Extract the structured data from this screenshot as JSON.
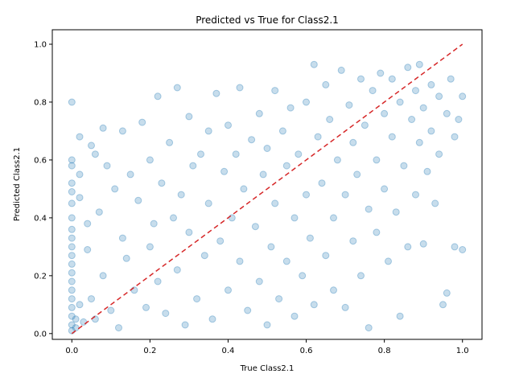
{
  "chart_data": {
    "type": "scatter",
    "title": "Predicted vs True for Class2.1",
    "xlabel": "True Class2.1",
    "ylabel": "Predicted Class2.1",
    "xlim": [
      -0.05,
      1.05
    ],
    "ylim": [
      -0.02,
      1.05
    ],
    "xticks": [
      0.0,
      0.2,
      0.4,
      0.6,
      0.8,
      1.0
    ],
    "xtick_labels": [
      "0.0",
      "0.2",
      "0.4",
      "0.6",
      "0.8",
      "1.0"
    ],
    "yticks": [
      0.0,
      0.2,
      0.4,
      0.6,
      0.8,
      1.0
    ],
    "ytick_labels": [
      "0.0",
      "0.2",
      "0.4",
      "0.6",
      "0.8",
      "1.0"
    ],
    "grid": false,
    "point_color": "#1f77b4",
    "point_alpha": 0.25,
    "reference_line": {
      "from": [
        0,
        0
      ],
      "to": [
        1,
        1
      ],
      "color": "#d62728",
      "style": "dashed"
    },
    "points": [
      [
        0.0,
        0.8
      ],
      [
        0.0,
        0.6
      ],
      [
        0.0,
        0.58
      ],
      [
        0.0,
        0.52
      ],
      [
        0.0,
        0.49
      ],
      [
        0.0,
        0.45
      ],
      [
        0.0,
        0.4
      ],
      [
        0.0,
        0.36
      ],
      [
        0.0,
        0.33
      ],
      [
        0.0,
        0.3
      ],
      [
        0.0,
        0.27
      ],
      [
        0.0,
        0.24
      ],
      [
        0.0,
        0.21
      ],
      [
        0.0,
        0.18
      ],
      [
        0.0,
        0.15
      ],
      [
        0.0,
        0.12
      ],
      [
        0.0,
        0.09
      ],
      [
        0.0,
        0.06
      ],
      [
        0.0,
        0.03
      ],
      [
        0.0,
        0.01
      ],
      [
        0.01,
        0.05
      ],
      [
        0.01,
        0.02
      ],
      [
        0.02,
        0.68
      ],
      [
        0.02,
        0.55
      ],
      [
        0.02,
        0.47
      ],
      [
        0.02,
        0.1
      ],
      [
        0.03,
        0.04
      ],
      [
        0.04,
        0.38
      ],
      [
        0.04,
        0.29
      ],
      [
        0.05,
        0.65
      ],
      [
        0.05,
        0.12
      ],
      [
        0.06,
        0.62
      ],
      [
        0.06,
        0.05
      ],
      [
        0.07,
        0.42
      ],
      [
        0.08,
        0.71
      ],
      [
        0.08,
        0.2
      ],
      [
        0.09,
        0.58
      ],
      [
        0.1,
        0.08
      ],
      [
        0.11,
        0.5
      ],
      [
        0.12,
        0.02
      ],
      [
        0.13,
        0.7
      ],
      [
        0.13,
        0.33
      ],
      [
        0.14,
        0.26
      ],
      [
        0.15,
        0.55
      ],
      [
        0.16,
        0.15
      ],
      [
        0.17,
        0.46
      ],
      [
        0.18,
        0.73
      ],
      [
        0.19,
        0.09
      ],
      [
        0.2,
        0.6
      ],
      [
        0.2,
        0.3
      ],
      [
        0.21,
        0.38
      ],
      [
        0.22,
        0.82
      ],
      [
        0.22,
        0.18
      ],
      [
        0.23,
        0.52
      ],
      [
        0.24,
        0.07
      ],
      [
        0.25,
        0.66
      ],
      [
        0.26,
        0.4
      ],
      [
        0.27,
        0.85
      ],
      [
        0.27,
        0.22
      ],
      [
        0.28,
        0.48
      ],
      [
        0.29,
        0.03
      ],
      [
        0.3,
        0.75
      ],
      [
        0.3,
        0.35
      ],
      [
        0.31,
        0.58
      ],
      [
        0.32,
        0.12
      ],
      [
        0.33,
        0.62
      ],
      [
        0.34,
        0.27
      ],
      [
        0.35,
        0.7
      ],
      [
        0.35,
        0.45
      ],
      [
        0.36,
        0.05
      ],
      [
        0.37,
        0.83
      ],
      [
        0.38,
        0.32
      ],
      [
        0.39,
        0.56
      ],
      [
        0.4,
        0.15
      ],
      [
        0.4,
        0.72
      ],
      [
        0.41,
        0.4
      ],
      [
        0.42,
        0.62
      ],
      [
        0.43,
        0.85
      ],
      [
        0.43,
        0.25
      ],
      [
        0.44,
        0.5
      ],
      [
        0.45,
        0.08
      ],
      [
        0.46,
        0.67
      ],
      [
        0.47,
        0.37
      ],
      [
        0.48,
        0.76
      ],
      [
        0.48,
        0.18
      ],
      [
        0.49,
        0.55
      ],
      [
        0.5,
        0.03
      ],
      [
        0.5,
        0.64
      ],
      [
        0.51,
        0.3
      ],
      [
        0.52,
        0.84
      ],
      [
        0.52,
        0.45
      ],
      [
        0.53,
        0.12
      ],
      [
        0.54,
        0.7
      ],
      [
        0.55,
        0.25
      ],
      [
        0.55,
        0.58
      ],
      [
        0.56,
        0.78
      ],
      [
        0.57,
        0.4
      ],
      [
        0.57,
        0.06
      ],
      [
        0.58,
        0.62
      ],
      [
        0.59,
        0.2
      ],
      [
        0.6,
        0.8
      ],
      [
        0.6,
        0.48
      ],
      [
        0.61,
        0.33
      ],
      [
        0.62,
        0.93
      ],
      [
        0.62,
        0.1
      ],
      [
        0.63,
        0.68
      ],
      [
        0.64,
        0.52
      ],
      [
        0.65,
        0.27
      ],
      [
        0.65,
        0.86
      ],
      [
        0.66,
        0.74
      ],
      [
        0.67,
        0.4
      ],
      [
        0.67,
        0.15
      ],
      [
        0.68,
        0.6
      ],
      [
        0.69,
        0.91
      ],
      [
        0.7,
        0.48
      ],
      [
        0.7,
        0.09
      ],
      [
        0.71,
        0.79
      ],
      [
        0.72,
        0.32
      ],
      [
        0.72,
        0.66
      ],
      [
        0.73,
        0.55
      ],
      [
        0.74,
        0.88
      ],
      [
        0.74,
        0.2
      ],
      [
        0.75,
        0.72
      ],
      [
        0.76,
        0.43
      ],
      [
        0.76,
        0.02
      ],
      [
        0.77,
        0.84
      ],
      [
        0.78,
        0.6
      ],
      [
        0.78,
        0.35
      ],
      [
        0.79,
        0.9
      ],
      [
        0.8,
        0.76
      ],
      [
        0.8,
        0.5
      ],
      [
        0.81,
        0.25
      ],
      [
        0.82,
        0.68
      ],
      [
        0.82,
        0.88
      ],
      [
        0.83,
        0.42
      ],
      [
        0.84,
        0.8
      ],
      [
        0.84,
        0.06
      ],
      [
        0.85,
        0.58
      ],
      [
        0.86,
        0.92
      ],
      [
        0.86,
        0.3
      ],
      [
        0.87,
        0.74
      ],
      [
        0.88,
        0.84
      ],
      [
        0.88,
        0.48
      ],
      [
        0.89,
        0.66
      ],
      [
        0.89,
        0.93
      ],
      [
        0.9,
        0.78
      ],
      [
        0.9,
        0.31
      ],
      [
        0.91,
        0.56
      ],
      [
        0.92,
        0.86
      ],
      [
        0.92,
        0.7
      ],
      [
        0.93,
        0.45
      ],
      [
        0.94,
        0.82
      ],
      [
        0.94,
        0.62
      ],
      [
        0.95,
        0.1
      ],
      [
        0.96,
        0.76
      ],
      [
        0.96,
        0.14
      ],
      [
        0.97,
        0.88
      ],
      [
        0.98,
        0.3
      ],
      [
        0.98,
        0.68
      ],
      [
        0.99,
        0.74
      ],
      [
        1.0,
        0.29
      ],
      [
        1.0,
        0.82
      ]
    ]
  }
}
